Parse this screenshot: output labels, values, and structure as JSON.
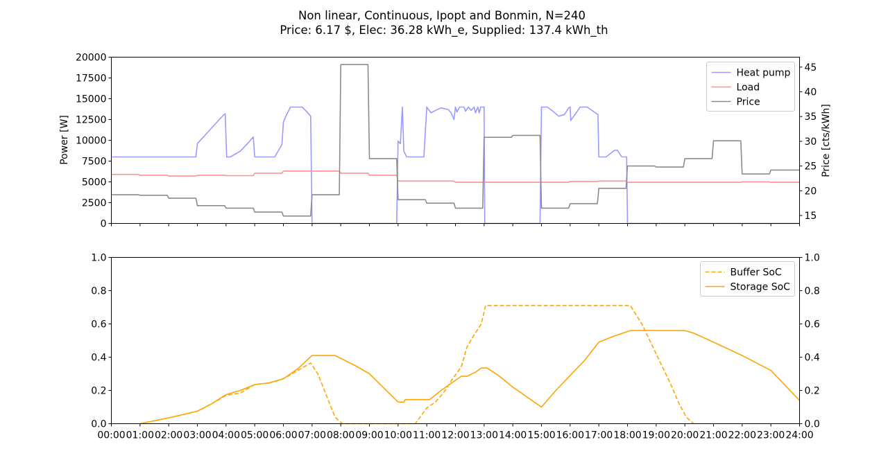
{
  "title_line1": "Non linear, Continuous, Ipopt and Bonmin, N=240",
  "title_line2": "Price: 6.17 $, Elec: 36.28 kWh_e, Supplied: 137.4 kWh_th",
  "chart_data": [
    {
      "type": "line",
      "ylabel": "Power [W]",
      "ylabel_right": "Price [cts/kWh]",
      "xlim": [
        0,
        24
      ],
      "ylim": [
        0,
        20000
      ],
      "ylim_right": [
        13.4,
        47.0
      ],
      "yticks": [
        0,
        2500,
        5000,
        7500,
        10000,
        12500,
        15000,
        17500,
        20000
      ],
      "yticks_right": [
        15,
        20,
        25,
        30,
        35,
        40,
        45
      ],
      "legend_position": "upper right",
      "legend": [
        "Heat pump",
        "Load",
        "Price"
      ],
      "grid": false,
      "series": [
        {
          "name": "Heat pump",
          "axis": "left",
          "color": "#9a9aff",
          "style": "solid",
          "points": [
            [
              0,
              8000
            ],
            [
              2.95,
              8000
            ],
            [
              3.0,
              9600
            ],
            [
              3.5,
              11500
            ],
            [
              3.9,
              13000
            ],
            [
              3.97,
              13200
            ],
            [
              4.02,
              8000
            ],
            [
              4.15,
              8000
            ],
            [
              4.5,
              8700
            ],
            [
              4.8,
              9800
            ],
            [
              4.95,
              10400
            ],
            [
              5.0,
              8000
            ],
            [
              5.1,
              8000
            ],
            [
              5.7,
              8000
            ],
            [
              5.95,
              9500
            ],
            [
              6.0,
              12200
            ],
            [
              6.1,
              13000
            ],
            [
              6.25,
              14000
            ],
            [
              6.65,
              14000
            ],
            [
              6.8,
              13500
            ],
            [
              6.95,
              12900
            ],
            [
              7.0,
              0
            ],
            [
              9.95,
              0
            ],
            [
              10.0,
              9900
            ],
            [
              10.08,
              9600
            ],
            [
              10.15,
              14000
            ],
            [
              10.2,
              8700
            ],
            [
              10.3,
              8000
            ],
            [
              10.9,
              8000
            ],
            [
              11.0,
              14000
            ],
            [
              11.15,
              13300
            ],
            [
              11.3,
              13600
            ],
            [
              11.5,
              13900
            ],
            [
              11.75,
              13700
            ],
            [
              11.85,
              13300
            ],
            [
              11.95,
              12500
            ],
            [
              12.0,
              14000
            ],
            [
              12.05,
              13400
            ],
            [
              12.15,
              14000
            ],
            [
              12.3,
              14000
            ],
            [
              12.35,
              13500
            ],
            [
              12.45,
              14000
            ],
            [
              12.55,
              13600
            ],
            [
              12.65,
              14000
            ],
            [
              12.7,
              13300
            ],
            [
              12.78,
              14000
            ],
            [
              12.83,
              13300
            ],
            [
              12.88,
              14000
            ],
            [
              13.0,
              14000
            ],
            [
              13.02,
              0
            ],
            [
              14.95,
              0
            ],
            [
              15.0,
              14000
            ],
            [
              15.2,
              14000
            ],
            [
              15.4,
              13500
            ],
            [
              15.6,
              12900
            ],
            [
              15.8,
              13100
            ],
            [
              15.95,
              13900
            ],
            [
              16.0,
              14000
            ],
            [
              16.02,
              12400
            ],
            [
              16.15,
              13000
            ],
            [
              16.35,
              14000
            ],
            [
              16.6,
              14000
            ],
            [
              16.8,
              13500
            ],
            [
              16.92,
              13200
            ],
            [
              16.97,
              13100
            ],
            [
              17.0,
              8000
            ],
            [
              17.25,
              8000
            ],
            [
              17.4,
              8400
            ],
            [
              17.55,
              8800
            ],
            [
              17.65,
              8800
            ],
            [
              17.8,
              8000
            ],
            [
              17.97,
              8000
            ],
            [
              18.0,
              0
            ],
            [
              24,
              0
            ]
          ]
        },
        {
          "name": "Load",
          "axis": "left",
          "color": "#ff9090",
          "style": "solid",
          "points": [
            [
              0,
              5900
            ],
            [
              0.95,
              5900
            ],
            [
              1.0,
              5800
            ],
            [
              1.95,
              5800
            ],
            [
              2.0,
              5700
            ],
            [
              2.95,
              5700
            ],
            [
              3.0,
              5800
            ],
            [
              3.95,
              5800
            ],
            [
              4.0,
              5750
            ],
            [
              4.95,
              5750
            ],
            [
              5.0,
              6050
            ],
            [
              5.95,
              6050
            ],
            [
              6.0,
              6300
            ],
            [
              7.95,
              6300
            ],
            [
              8.0,
              6050
            ],
            [
              8.95,
              6050
            ],
            [
              9.0,
              5800
            ],
            [
              9.95,
              5800
            ],
            [
              10.0,
              5100
            ],
            [
              11.95,
              5100
            ],
            [
              12.0,
              4950
            ],
            [
              15.95,
              4950
            ],
            [
              16.0,
              5050
            ],
            [
              16.95,
              5050
            ],
            [
              17.0,
              5100
            ],
            [
              17.95,
              5100
            ],
            [
              18.0,
              4950
            ],
            [
              21.95,
              4950
            ],
            [
              22.0,
              5000
            ],
            [
              22.95,
              5000
            ],
            [
              23.0,
              4950
            ],
            [
              24,
              4950
            ]
          ]
        },
        {
          "name": "Price",
          "axis": "right",
          "color": "#8c8c8c",
          "style": "solid",
          "points": [
            [
              0,
              19.2
            ],
            [
              0.95,
              19.2
            ],
            [
              1.0,
              19.1
            ],
            [
              1.95,
              19.1
            ],
            [
              2.0,
              18.5
            ],
            [
              2.95,
              18.5
            ],
            [
              3.0,
              17.0
            ],
            [
              3.95,
              17.0
            ],
            [
              4.0,
              16.5
            ],
            [
              4.95,
              16.5
            ],
            [
              5.0,
              15.7
            ],
            [
              5.95,
              15.7
            ],
            [
              6.0,
              14.9
            ],
            [
              6.95,
              14.9
            ],
            [
              7.0,
              19.2
            ],
            [
              7.95,
              19.2
            ],
            [
              8.0,
              45.5
            ],
            [
              8.95,
              45.5
            ],
            [
              9.0,
              26.5
            ],
            [
              9.95,
              26.5
            ],
            [
              10.0,
              18.2
            ],
            [
              10.95,
              18.2
            ],
            [
              11.0,
              17.5
            ],
            [
              11.95,
              17.5
            ],
            [
              12.0,
              16.5
            ],
            [
              12.95,
              16.5
            ],
            [
              13.0,
              30.8
            ],
            [
              13.95,
              30.8
            ],
            [
              14.0,
              31.2
            ],
            [
              14.95,
              31.2
            ],
            [
              15.0,
              16.5
            ],
            [
              15.95,
              16.5
            ],
            [
              16.0,
              17.4
            ],
            [
              16.95,
              17.4
            ],
            [
              17.0,
              20.5
            ],
            [
              17.95,
              20.5
            ],
            [
              18.0,
              25.0
            ],
            [
              18.95,
              25.0
            ],
            [
              19.0,
              24.8
            ],
            [
              19.95,
              24.8
            ],
            [
              20.0,
              26.5
            ],
            [
              20.95,
              26.5
            ],
            [
              21.0,
              30.1
            ],
            [
              21.95,
              30.1
            ],
            [
              22.0,
              23.4
            ],
            [
              22.95,
              23.4
            ],
            [
              23.0,
              24.2
            ],
            [
              24,
              24.2
            ]
          ]
        }
      ]
    },
    {
      "type": "line",
      "xlim": [
        0,
        24
      ],
      "ylim": [
        0,
        1.0
      ],
      "ylim_right": [
        0,
        1.0
      ],
      "yticks": [
        0.0,
        0.2,
        0.4,
        0.6,
        0.8,
        1.0
      ],
      "legend_position": "upper right",
      "legend": [
        "Buffer SoC",
        "Storage SoC"
      ],
      "grid": false,
      "xticks": [
        "00:00",
        "01:00",
        "02:00",
        "03:00",
        "04:00",
        "05:00",
        "06:00",
        "07:00",
        "08:00",
        "09:00",
        "10:00",
        "11:00",
        "12:00",
        "13:00",
        "14:00",
        "15:00",
        "16:00",
        "17:00",
        "18:00",
        "19:00",
        "20:00",
        "21:00",
        "22:00",
        "23:00",
        "24:00"
      ],
      "series": [
        {
          "name": "Buffer SoC",
          "color": "#ffa500",
          "style": "dashed",
          "points": [
            [
              1.0,
              0.0
            ],
            [
              2.0,
              0.035
            ],
            [
              3.0,
              0.075
            ],
            [
              3.5,
              0.12
            ],
            [
              4.0,
              0.17
            ],
            [
              4.5,
              0.185
            ],
            [
              5.0,
              0.235
            ],
            [
              5.5,
              0.245
            ],
            [
              6.0,
              0.27
            ],
            [
              6.3,
              0.3
            ],
            [
              6.6,
              0.33
            ],
            [
              6.95,
              0.365
            ],
            [
              7.2,
              0.3
            ],
            [
              7.5,
              0.17
            ],
            [
              7.8,
              0.04
            ],
            [
              8.05,
              0.0
            ],
            [
              10.6,
              0.0
            ],
            [
              11.0,
              0.095
            ],
            [
              11.3,
              0.13
            ],
            [
              11.6,
              0.19
            ],
            [
              11.9,
              0.27
            ],
            [
              12.2,
              0.34
            ],
            [
              12.4,
              0.46
            ],
            [
              12.6,
              0.52
            ],
            [
              12.9,
              0.6
            ],
            [
              13.05,
              0.71
            ],
            [
              18.1,
              0.71
            ],
            [
              18.5,
              0.6
            ],
            [
              19.0,
              0.42
            ],
            [
              19.5,
              0.24
            ],
            [
              19.8,
              0.12
            ],
            [
              20.05,
              0.04
            ],
            [
              20.3,
              0.0
            ]
          ]
        },
        {
          "name": "Storage SoC",
          "color": "#ffa500",
          "style": "solid",
          "points": [
            [
              1.0,
              0.0
            ],
            [
              2.0,
              0.035
            ],
            [
              3.0,
              0.075
            ],
            [
              3.5,
              0.12
            ],
            [
              4.0,
              0.175
            ],
            [
              4.5,
              0.2
            ],
            [
              5.0,
              0.235
            ],
            [
              5.5,
              0.245
            ],
            [
              6.0,
              0.27
            ],
            [
              6.5,
              0.33
            ],
            [
              7.0,
              0.41
            ],
            [
              7.5,
              0.41
            ],
            [
              7.8,
              0.41
            ],
            [
              8.5,
              0.35
            ],
            [
              9.0,
              0.3
            ],
            [
              10.0,
              0.13
            ],
            [
              10.2,
              0.13
            ],
            [
              10.25,
              0.145
            ],
            [
              11.1,
              0.145
            ],
            [
              11.5,
              0.2
            ],
            [
              12.2,
              0.285
            ],
            [
              12.4,
              0.285
            ],
            [
              12.7,
              0.31
            ],
            [
              12.9,
              0.335
            ],
            [
              13.1,
              0.335
            ],
            [
              13.5,
              0.29
            ],
            [
              14.0,
              0.22
            ],
            [
              15.0,
              0.1
            ],
            [
              15.5,
              0.2
            ],
            [
              16.0,
              0.29
            ],
            [
              16.5,
              0.38
            ],
            [
              17.0,
              0.49
            ],
            [
              17.5,
              0.525
            ],
            [
              18.1,
              0.56
            ],
            [
              19.0,
              0.56
            ],
            [
              19.5,
              0.56
            ],
            [
              20.0,
              0.56
            ],
            [
              20.3,
              0.545
            ],
            [
              21.0,
              0.49
            ],
            [
              22.0,
              0.41
            ],
            [
              23.0,
              0.32
            ],
            [
              24,
              0.14
            ]
          ]
        }
      ]
    }
  ]
}
